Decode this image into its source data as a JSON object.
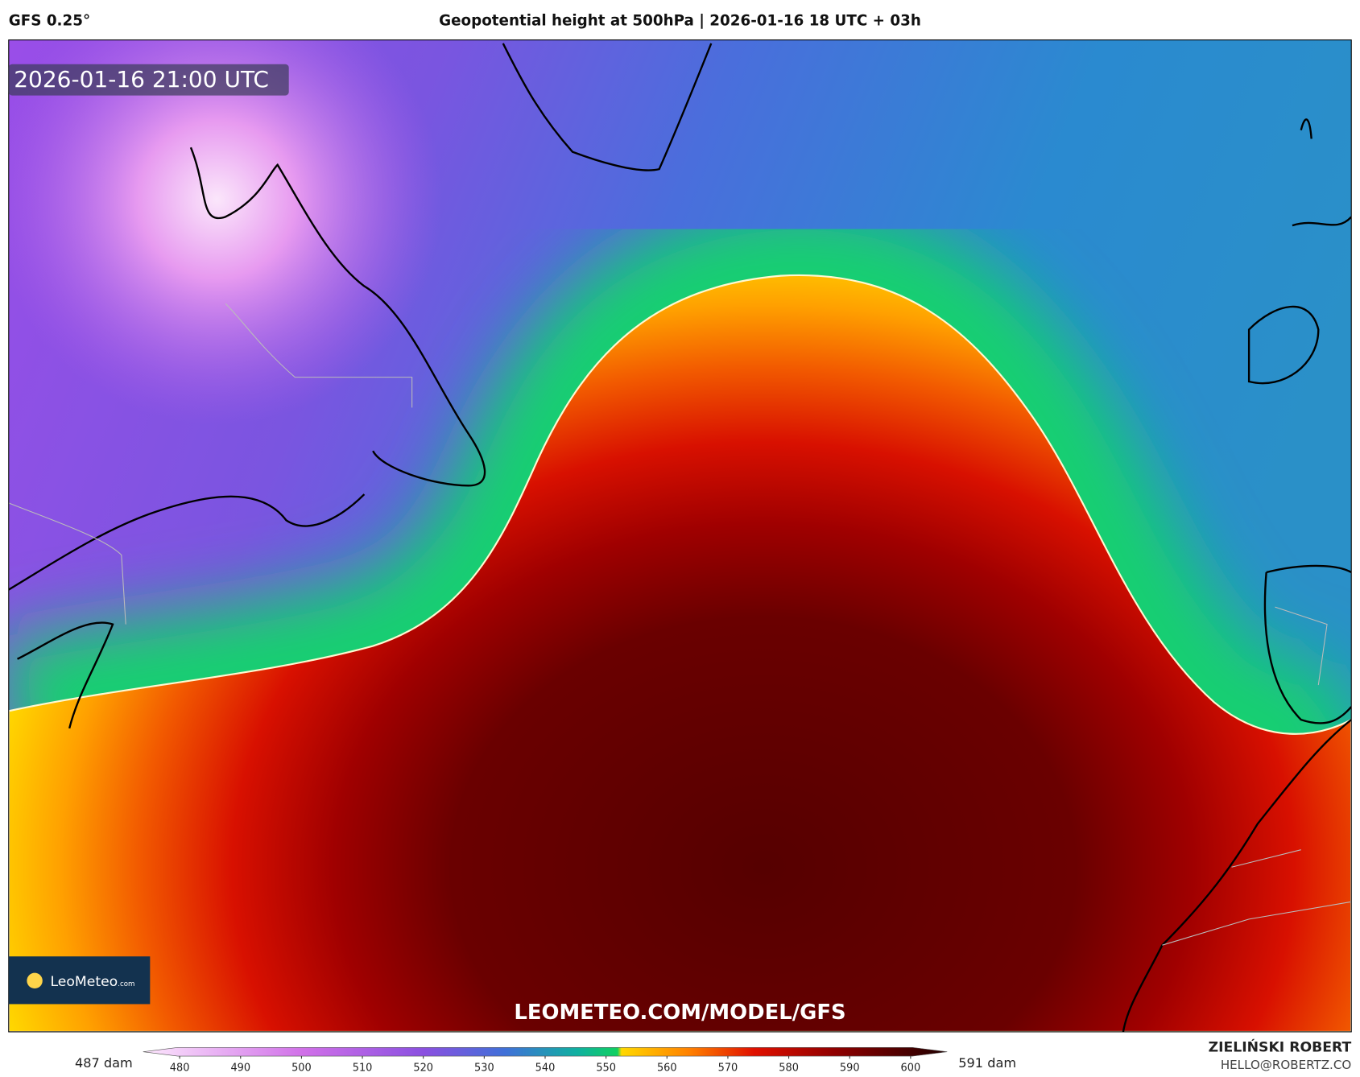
{
  "header": {
    "model": "GFS 0.25°",
    "title": "Geopotential height at 500hPa | 2026-01-16 18 UTC + 03h"
  },
  "map": {
    "valid_time": "2026-01-16 21:00 UTC",
    "watermark": "LEOMETEO.COM/MODEL/GFS",
    "logo": {
      "name": "LeoMeteo",
      "suffix": ".com"
    }
  },
  "colorbar": {
    "range": [
      474,
      606
    ],
    "ticks": [
      480,
      490,
      500,
      510,
      520,
      530,
      540,
      550,
      560,
      570,
      580,
      590,
      600
    ],
    "min_label": "487 dam",
    "max_label": "591 dam"
  },
  "footer": {
    "author": "ZIELIŃSKI ROBERT",
    "email": "HELLO@ROBERTZ.CO"
  }
}
